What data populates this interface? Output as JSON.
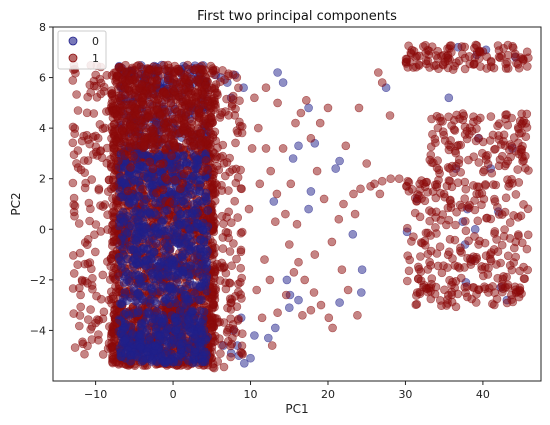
{
  "chart_data": {
    "type": "scatter",
    "title": "First two principal components",
    "xlabel": "PC1",
    "ylabel": "PC2",
    "xlim": [
      -15.5,
      47.5
    ],
    "ylim": [
      -6,
      8
    ],
    "xticks": [
      -10,
      0,
      10,
      20,
      30,
      40
    ],
    "yticks": [
      -4,
      -2,
      0,
      2,
      4,
      6,
      8
    ],
    "grid": false,
    "legend": {
      "placement": "top-left"
    },
    "series": [
      {
        "name": "0",
        "color": "#1f1f8a",
        "clusters": [
          {
            "x": [
              -7,
              4.5
            ],
            "y": [
              -5.3,
              -3.2
            ],
            "n": 300
          },
          {
            "x": [
              -7,
              4.5
            ],
            "y": [
              -3.0,
              0.8
            ],
            "n": 360
          },
          {
            "x": [
              -7,
              4.5
            ],
            "y": [
              1.0,
              3.0
            ],
            "n": 220
          },
          {
            "x": [
              -7,
              4.5
            ],
            "y": [
              3.2,
              6.5
            ],
            "n": 300
          }
        ],
        "points": [
          [
            5.5,
            6.1
          ],
          [
            6.2,
            6.0
          ],
          [
            7.0,
            5.8
          ],
          [
            7.5,
            5.2
          ],
          [
            8.0,
            6.1
          ],
          [
            9.1,
            5.6
          ],
          [
            13.5,
            6.2
          ],
          [
            14.2,
            5.8
          ],
          [
            6.5,
            -4.6
          ],
          [
            7.5,
            -4.9
          ],
          [
            8.5,
            -5.0
          ],
          [
            9.2,
            -5.3
          ],
          [
            10.0,
            -5.1
          ],
          [
            13.2,
            -3.9
          ],
          [
            15.1,
            -2.6
          ],
          [
            17.5,
            0.8
          ],
          [
            17.8,
            1.5
          ],
          [
            16.2,
            -2.8
          ],
          [
            10.5,
            -4.2
          ],
          [
            18.3,
            3.4
          ],
          [
            17.5,
            4.8
          ],
          [
            21.0,
            2.4
          ],
          [
            15.5,
            2.8
          ],
          [
            16.2,
            3.3
          ],
          [
            23.2,
            -0.2
          ],
          [
            24.4,
            -1.6
          ],
          [
            12.3,
            -4.3
          ],
          [
            8.8,
            -3.5
          ],
          [
            7.8,
            -4.0
          ],
          [
            8.3,
            -4.6
          ],
          [
            15.0,
            -3.1
          ],
          [
            14.7,
            -2.0
          ],
          [
            13.0,
            1.1
          ],
          [
            21.5,
            2.7
          ],
          [
            24.3,
            -2.5
          ],
          [
            21.5,
            -2.9
          ],
          [
            36.8,
            7.2
          ],
          [
            39.2,
            6.9
          ],
          [
            40.4,
            7.1
          ],
          [
            35.6,
            5.2
          ],
          [
            39.4,
            3.6
          ],
          [
            43.8,
            3.2
          ],
          [
            41.0,
            2.4
          ],
          [
            38.0,
            0.8
          ],
          [
            31.5,
            1.2
          ],
          [
            42.3,
            -2.3
          ],
          [
            37.8,
            -2.1
          ],
          [
            38.6,
            -1.2
          ],
          [
            42.0,
            0.7
          ],
          [
            37.4,
            0.3
          ],
          [
            30.2,
            -0.1
          ],
          [
            36.5,
            2.4
          ],
          [
            44.2,
            6.8
          ],
          [
            27.5,
            5.6
          ],
          [
            37.7,
            -0.6
          ],
          [
            43.1,
            -2.8
          ],
          [
            39.0,
            0.0
          ]
        ]
      },
      {
        "name": "1",
        "color": "#8b0a0a",
        "clusters": [
          {
            "x": [
              -8,
              5.5
            ],
            "y": [
              -5.4,
              -3.0
            ],
            "n": 650
          },
          {
            "x": [
              -8,
              5.5
            ],
            "y": [
              -3.0,
              1.0
            ],
            "n": 750
          },
          {
            "x": [
              -8,
              5.5
            ],
            "y": [
              1.0,
              3.2
            ],
            "n": 430
          },
          {
            "x": [
              -8,
              5.5
            ],
            "y": [
              3.2,
              6.5
            ],
            "n": 600
          },
          {
            "x": [
              -13,
              -7
            ],
            "y": [
              -5,
              6.5
            ],
            "n": 170
          },
          {
            "x": [
              5,
              9
            ],
            "y": [
              -5.5,
              6.3
            ],
            "n": 150
          },
          {
            "x": [
              30,
              46
            ],
            "y": [
              6.3,
              7.3
            ],
            "n": 110
          },
          {
            "x": [
              33,
              46
            ],
            "y": [
              2.2,
              4.6
            ],
            "n": 130
          },
          {
            "x": [
              30,
              46
            ],
            "y": [
              -2.6,
              2.0
            ],
            "n": 230
          },
          {
            "x": [
              31,
              45
            ],
            "y": [
              -3.1,
              -2.0
            ],
            "n": 50
          }
        ],
        "points": [
          [
            10.5,
            5.2
          ],
          [
            11.0,
            4.0
          ],
          [
            12.0,
            3.2
          ],
          [
            12.6,
            2.3
          ],
          [
            13.4,
            1.4
          ],
          [
            14.5,
            0.6
          ],
          [
            15.0,
            -0.6
          ],
          [
            16.2,
            -1.3
          ],
          [
            17.0,
            -2.0
          ],
          [
            18.2,
            -2.5
          ],
          [
            19.1,
            -3.0
          ],
          [
            20.1,
            -3.5
          ],
          [
            20.6,
            -3.9
          ],
          [
            21.4,
            0.4
          ],
          [
            22.0,
            1.0
          ],
          [
            23.3,
            1.4
          ],
          [
            24.2,
            1.6
          ],
          [
            25.5,
            1.7
          ],
          [
            26.0,
            1.8
          ],
          [
            27.0,
            1.9
          ],
          [
            28.1,
            2.0
          ],
          [
            29.2,
            2.0
          ],
          [
            30.3,
            1.9
          ],
          [
            16.5,
            4.6
          ],
          [
            17.2,
            5.1
          ],
          [
            15.8,
            4.2
          ],
          [
            17.8,
            3.6
          ],
          [
            14.2,
            3.2
          ],
          [
            13.5,
            -3.3
          ],
          [
            12.5,
            -2.0
          ],
          [
            11.5,
            -3.5
          ],
          [
            12.8,
            -4.6
          ],
          [
            11.8,
            -1.2
          ],
          [
            13.2,
            0.3
          ],
          [
            14.6,
            -2.6
          ],
          [
            15.6,
            -1.7
          ],
          [
            16.7,
            -3.4
          ],
          [
            17.8,
            -3.2
          ],
          [
            18.6,
            2.3
          ],
          [
            19.5,
            1.2
          ],
          [
            20.5,
            -0.5
          ],
          [
            21.8,
            -1.6
          ],
          [
            22.6,
            -2.4
          ],
          [
            23.5,
            0.6
          ],
          [
            24.0,
            4.8
          ],
          [
            26.5,
            6.2
          ],
          [
            27.0,
            5.8
          ],
          [
            28.0,
            4.5
          ],
          [
            19.0,
            4.2
          ],
          [
            20.0,
            4.8
          ],
          [
            12.0,
            5.6
          ],
          [
            13.5,
            5.0
          ],
          [
            22.3,
            3.3
          ],
          [
            11.2,
            1.8
          ],
          [
            10.8,
            -2.4
          ],
          [
            18.3,
            -1.0
          ],
          [
            23.8,
            -3.4
          ],
          [
            15.2,
            1.8
          ],
          [
            16.0,
            0.2
          ],
          [
            25.0,
            2.6
          ],
          [
            26.7,
            1.4
          ],
          [
            9.8,
            0.8
          ],
          [
            10.2,
            3.2
          ]
        ]
      }
    ]
  }
}
